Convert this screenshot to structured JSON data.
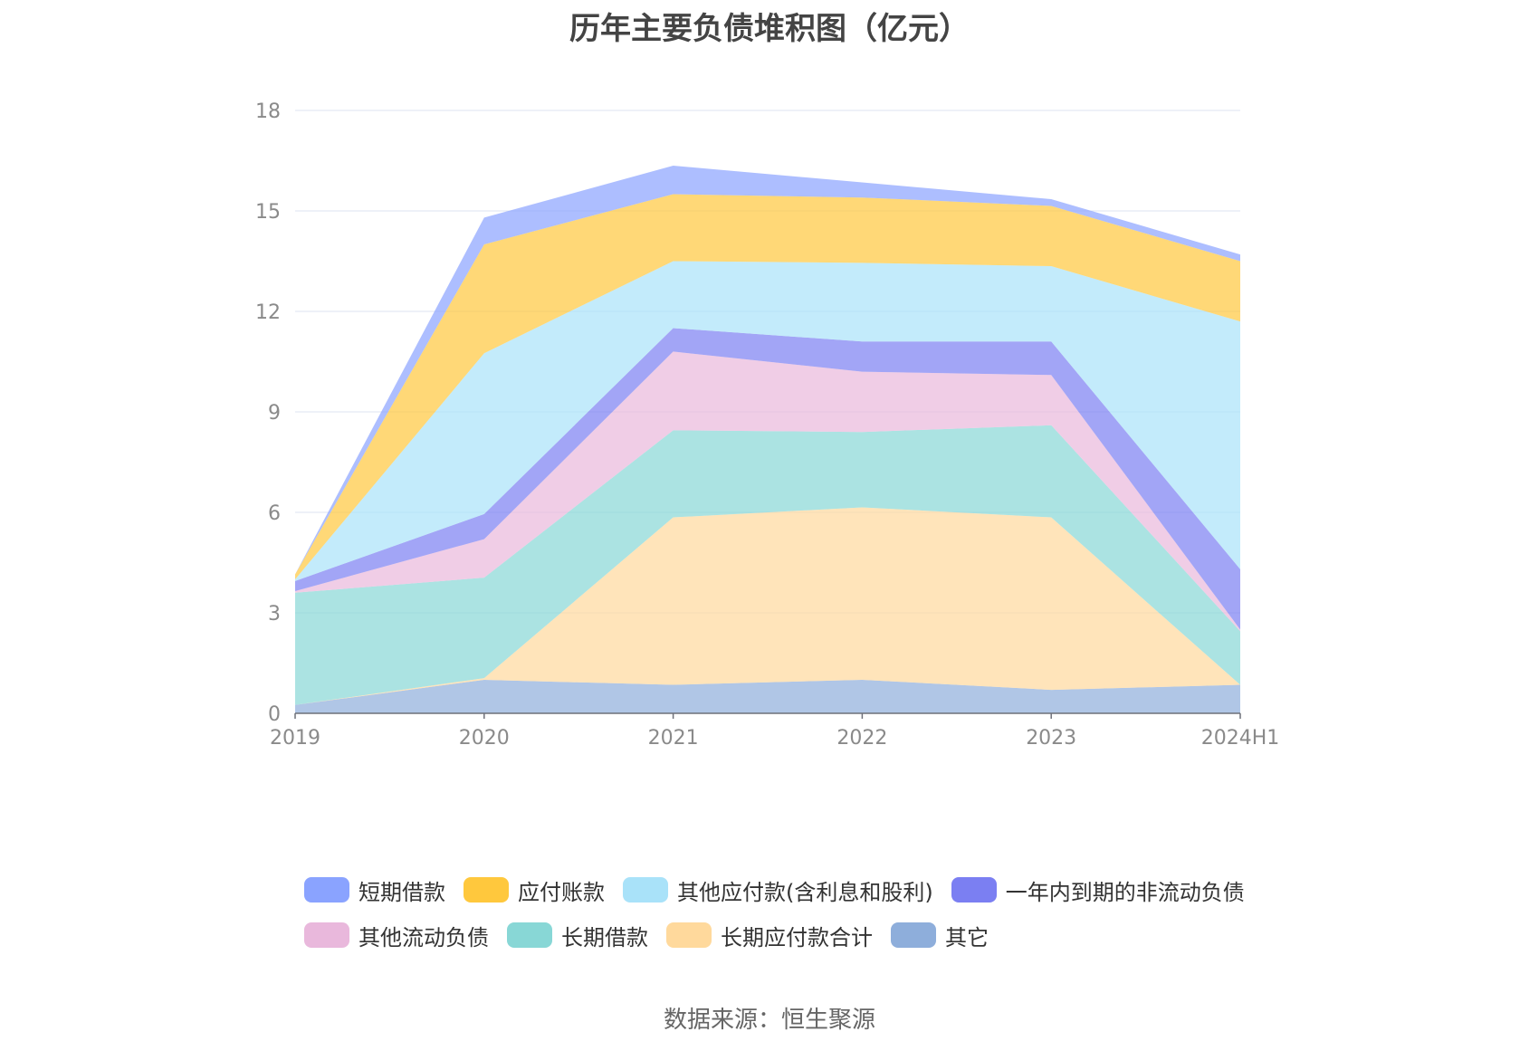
{
  "chart_data": {
    "type": "area",
    "stacked": true,
    "title": "历年主要负债堆积图（亿元）",
    "categories": [
      "2019",
      "2020",
      "2021",
      "2022",
      "2023",
      "2024H1"
    ],
    "y_ticks": [
      "0",
      "3",
      "6",
      "9",
      "12",
      "15",
      "18"
    ],
    "ylim": [
      0,
      18
    ],
    "grid": true,
    "legend_position": "bottom",
    "series": [
      {
        "name": "其它",
        "color": "#8eaedb",
        "values": [
          0.25,
          1.0,
          0.85,
          1.0,
          0.7,
          0.85
        ]
      },
      {
        "name": "长期应付款合计",
        "color": "#ffd99c",
        "values": [
          0.0,
          0.05,
          5.0,
          5.15,
          5.15,
          0.0
        ]
      },
      {
        "name": "长期借款",
        "color": "#88d7d6",
        "values": [
          3.35,
          3.0,
          2.6,
          2.25,
          2.75,
          1.6
        ]
      },
      {
        "name": "其他流动负债",
        "color": "#e9b8dc",
        "values": [
          0.05,
          1.15,
          2.35,
          1.8,
          1.5,
          0.05
        ]
      },
      {
        "name": "一年内到期的非流动负债",
        "color": "#7b7ff2",
        "values": [
          0.3,
          0.75,
          0.7,
          0.9,
          1.0,
          1.8
        ]
      },
      {
        "name": "其他应付款(含利息和股利)",
        "color": "#a9e2f9",
        "values": [
          0.05,
          4.8,
          2.0,
          2.35,
          2.25,
          7.4
        ]
      },
      {
        "name": "应付账款",
        "color": "#ffc83d",
        "values": [
          0.15,
          3.25,
          2.0,
          1.95,
          1.8,
          1.8
        ]
      },
      {
        "name": "短期借款",
        "color": "#8aa3ff",
        "values": [
          0.0,
          0.8,
          0.85,
          0.45,
          0.2,
          0.2
        ]
      }
    ]
  },
  "legend": {
    "rows": [
      [
        "短期借款",
        "应付账款",
        "其他应付款(含利息和股利)",
        "一年内到期的非流动负债"
      ],
      [
        "其他流动负债",
        "长期借款",
        "长期应付款合计",
        "其它"
      ]
    ]
  },
  "source_text": "数据来源：恒生聚源"
}
